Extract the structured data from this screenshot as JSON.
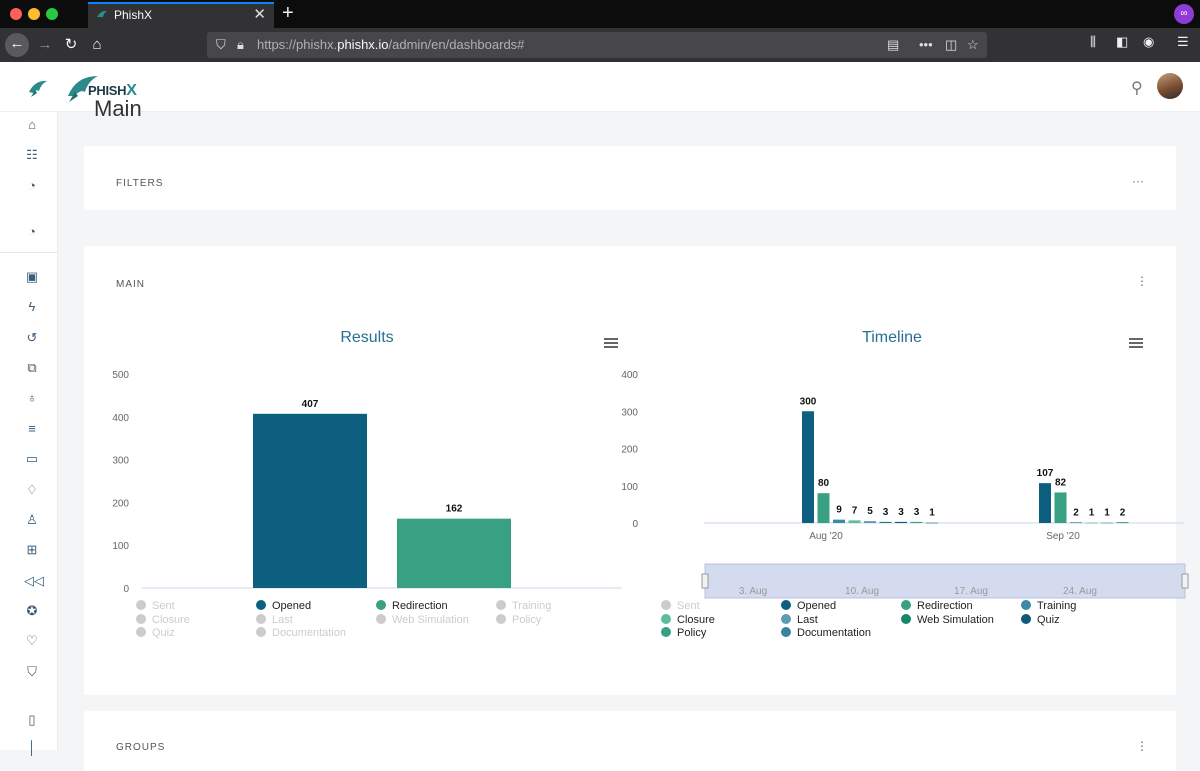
{
  "browser": {
    "tab_title": "PhishX",
    "url_prefix": "https://phishx.",
    "url_domain": "phishx.io",
    "url_path": "/admin/en/dashboards#"
  },
  "app": {
    "logo_text_1": "PHISH",
    "logo_text_2": "X",
    "page_title": "Main",
    "filters_title": "FILTERS",
    "main_title": "MAIN",
    "groups_title": "GROUPS",
    "card_menu_dots": "···",
    "card_menu_vdots": "⋮"
  },
  "colors": {
    "opened": "#0d5f80",
    "redirection": "#38a083",
    "training": "#3b8ba8",
    "closure": "#5bbd9d",
    "last": "#5c9bb5",
    "documentation": "#3b82a0",
    "web_simulation": "#13886a",
    "quiz": "#0f5a7a",
    "policy": "#38a083",
    "disabled": "#cccccc"
  },
  "results": {
    "title": "Results",
    "legend": [
      {
        "label": "Sent",
        "active": false
      },
      {
        "label": "Opened",
        "active": true,
        "color": "#0d5f80"
      },
      {
        "label": "Redirection",
        "active": true,
        "color": "#38a083"
      },
      {
        "label": "Training",
        "active": false
      },
      {
        "label": "Closure",
        "active": false
      },
      {
        "label": "Last",
        "active": false
      },
      {
        "label": "Web Simulation",
        "active": false
      },
      {
        "label": "Policy",
        "active": false
      },
      {
        "label": "Quiz",
        "active": false
      },
      {
        "label": "Documentation",
        "active": false
      }
    ]
  },
  "timeline": {
    "title": "Timeline",
    "navigator_labels": [
      "3. Aug",
      "10. Aug",
      "17. Aug",
      "24. Aug"
    ],
    "legend": [
      {
        "label": "Sent",
        "active": false
      },
      {
        "label": "Opened",
        "active": true,
        "color": "#0d5f80"
      },
      {
        "label": "Redirection",
        "active": true,
        "color": "#38a083"
      },
      {
        "label": "Training",
        "active": true,
        "color": "#3b8ba8"
      },
      {
        "label": "Closure",
        "active": true,
        "color": "#5bbd9d"
      },
      {
        "label": "Last",
        "active": true,
        "color": "#5c9bb5"
      },
      {
        "label": "Web Simulation",
        "active": true,
        "color": "#13886a"
      },
      {
        "label": "Quiz",
        "active": true,
        "color": "#0f5a7a"
      },
      {
        "label": "Policy",
        "active": true,
        "color": "#38a083"
      },
      {
        "label": "Documentation",
        "active": true,
        "color": "#3b82a0"
      }
    ]
  },
  "chart_data": [
    {
      "type": "bar",
      "title": "Results",
      "categories": [
        "Opened",
        "Redirection"
      ],
      "values": [
        407,
        162
      ],
      "ylim": [
        0,
        500
      ],
      "yticks": [
        0,
        100,
        200,
        300,
        400,
        500
      ],
      "grid": false
    },
    {
      "type": "bar",
      "title": "Timeline",
      "x": [
        "Aug '20",
        "Sep '20"
      ],
      "series": [
        {
          "name": "Opened",
          "values": [
            300,
            107
          ]
        },
        {
          "name": "Redirection",
          "values": [
            80,
            82
          ]
        },
        {
          "name": "Training",
          "values": [
            9,
            2
          ]
        },
        {
          "name": "Closure",
          "values": [
            7,
            1
          ]
        },
        {
          "name": "Last",
          "values": [
            5,
            1
          ]
        },
        {
          "name": "Web Simulation",
          "values": [
            3,
            2
          ]
        },
        {
          "name": "Quiz",
          "values": [
            3,
            null
          ]
        },
        {
          "name": "Policy",
          "values": [
            3,
            null
          ]
        },
        {
          "name": "Documentation",
          "values": [
            1,
            null
          ]
        }
      ],
      "ylim": [
        0,
        400
      ],
      "yticks": [
        0,
        100,
        200,
        300,
        400
      ],
      "grid": false
    }
  ]
}
